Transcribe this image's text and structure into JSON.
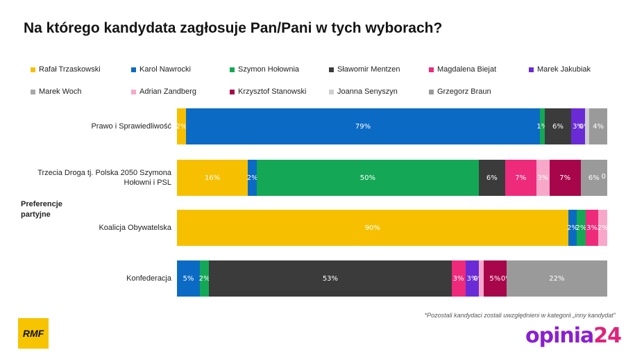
{
  "title": "Na którego kandydata zagłosuje Pan/Pani w tych wyborach?",
  "group_label": "Preferencje partyjne",
  "footnote": "*Pozostali kandydaci zostali uwzględnieni w kategorii „inny kandydat\"",
  "logos": {
    "rmf": "RMF",
    "opinia_text": "opinia",
    "opinia_num": "24"
  },
  "colors": {
    "trzaskowski": "#f6c000",
    "nawrocki": "#0b6bc4",
    "holownia": "#14a856",
    "mentzen": "#3b3b3b",
    "biejat": "#ee2a7b",
    "jakubiak": "#6a2bd6",
    "woch": "#a8a8a8",
    "zandberg": "#f7a8c8",
    "stanowski": "#a8064a",
    "senyszyn": "#cfcfcf",
    "braun": "#9a9a9a"
  },
  "chart_data": {
    "type": "bar",
    "orientation": "horizontal",
    "stacked": true,
    "title": "Na którego kandydata zagłosuje Pan/Pani w tych wyborach?",
    "xlim": [
      0,
      100
    ],
    "legend_position": "top",
    "categories": [
      "Prawo i Sprawiedliwość",
      "Trzecia Droga tj. Polska 2050 Szymona Hołowni i PSL",
      "Koalicja Obywatelska",
      "Konfederacja"
    ],
    "series": [
      {
        "name": "Rafał Trzaskowski",
        "key": "trzaskowski",
        "values": [
          2,
          16,
          90,
          0
        ]
      },
      {
        "name": "Karol Nawrocki",
        "key": "nawrocki",
        "values": [
          79,
          2,
          2,
          5
        ]
      },
      {
        "name": "Szymon Hołownia",
        "key": "holownia",
        "values": [
          1,
          50,
          2,
          2
        ]
      },
      {
        "name": "Sławomir Mentzen",
        "key": "mentzen",
        "values": [
          6,
          6,
          0,
          53
        ]
      },
      {
        "name": "Magdalena Biejat",
        "key": "biejat",
        "values": [
          0,
          7,
          3,
          3
        ]
      },
      {
        "name": "Marek Jakubiak",
        "key": "jakubiak",
        "values": [
          3,
          0,
          0,
          3
        ]
      },
      {
        "name": "Marek Woch",
        "key": "woch",
        "values": [
          0,
          0,
          0,
          0
        ]
      },
      {
        "name": "Adrian Zandberg",
        "key": "zandberg",
        "values": [
          0,
          3,
          2,
          1
        ]
      },
      {
        "name": "Krzysztof Stanowski",
        "key": "stanowski",
        "values": [
          0,
          7,
          0,
          5
        ]
      },
      {
        "name": "Joanna Senyszyn",
        "key": "senyszyn",
        "values": [
          1,
          0,
          0,
          0
        ]
      },
      {
        "name": "Grzegorz Braun",
        "key": "braun",
        "values": [
          4,
          6,
          0,
          22
        ]
      }
    ],
    "data_labels": [
      [
        "2%",
        "79%",
        "1%",
        "6%",
        "",
        "3%",
        "0%",
        "",
        "",
        "",
        "4%"
      ],
      [
        "16%",
        "2%",
        "50%",
        "6%",
        "7%",
        "",
        "",
        "3%",
        "7%",
        "",
        "6%"
      ],
      [
        "90%",
        "2%",
        "2%",
        "",
        "3%",
        "",
        "",
        "2%",
        "",
        "",
        ""
      ],
      [
        "",
        "5%",
        "2%",
        "53%",
        "3%",
        "3%",
        "0%",
        "",
        "5%",
        "0%",
        "22%"
      ]
    ],
    "trailing_labels": [
      "",
      "0",
      "",
      ""
    ]
  }
}
